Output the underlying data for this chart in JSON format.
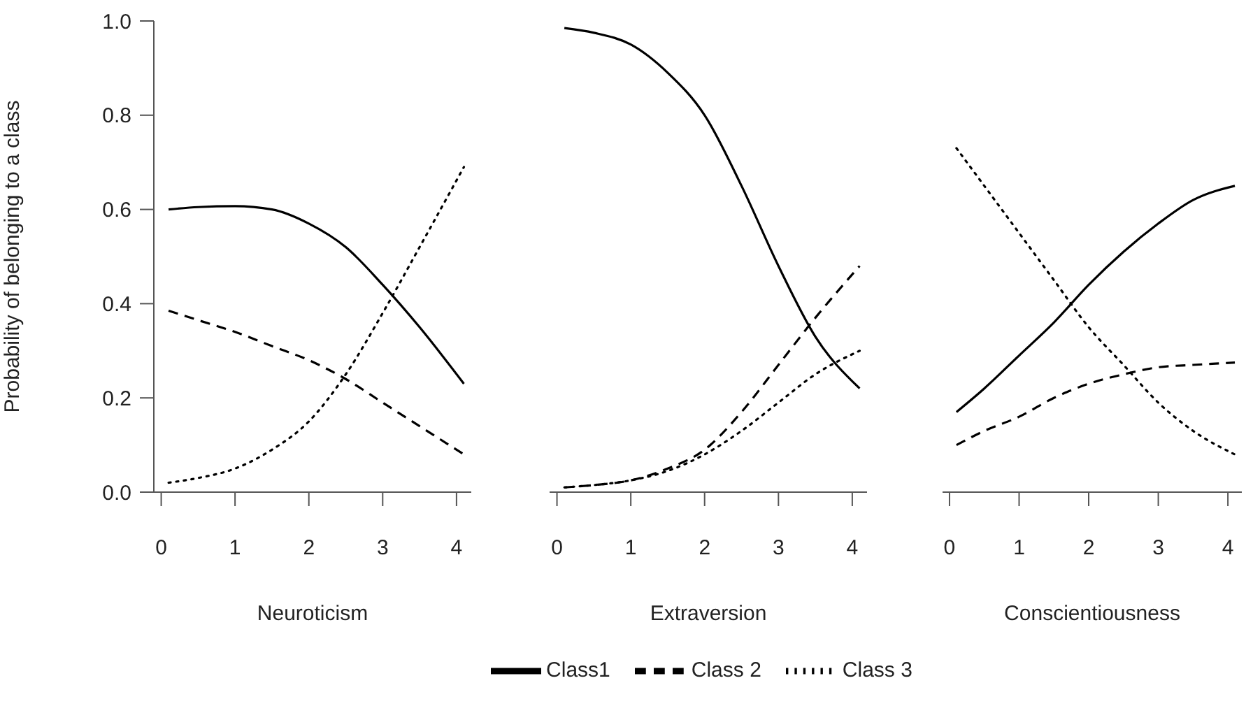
{
  "chart_data": [
    {
      "type": "line",
      "xlabel": "Neuroticism",
      "ylabel": "Probability of belonging to a class",
      "x": [
        0.1,
        0.5,
        1,
        1.5,
        2,
        2.5,
        3,
        3.5,
        4.1
      ],
      "xlim": [
        -0.1,
        4.2
      ],
      "xticks": [
        0,
        1,
        2,
        3,
        4
      ],
      "ylim": [
        0,
        1
      ],
      "yticks": [
        {
          "value": 0,
          "label": "0.0"
        },
        0.2,
        0.4,
        0.6,
        0.8,
        {
          "value": 1,
          "label": "1.0"
        }
      ],
      "grid": false,
      "marker": "none",
      "series": [
        {
          "color": "#000000",
          "line_style": "solid",
          "values": [
            0.6,
            0.605,
            0.607,
            0.6,
            0.57,
            0.52,
            0.44,
            0.35,
            0.23
          ]
        },
        {
          "color": "#000000",
          "line_style": "dashed",
          "values": [
            0.385,
            0.365,
            0.34,
            0.31,
            0.28,
            0.24,
            0.19,
            0.14,
            0.08
          ]
        },
        {
          "color": "#000000",
          "line_style": "dotted",
          "values": [
            0.02,
            0.03,
            0.05,
            0.09,
            0.15,
            0.25,
            0.38,
            0.52,
            0.69
          ]
        }
      ]
    },
    {
      "type": "line",
      "xlabel": "Extraversion",
      "x": [
        0.1,
        0.5,
        1,
        1.5,
        2,
        2.5,
        3,
        3.5,
        4.1
      ],
      "xlim": [
        -0.1,
        4.2
      ],
      "xticks": [
        0,
        1,
        2,
        3,
        4
      ],
      "ylim": [
        0,
        1
      ],
      "tick_labels": "x",
      "grid": false,
      "marker": "none",
      "legend": "bottom",
      "series": [
        {
          "name": "Class1",
          "color": "#000000",
          "line_style": "solid",
          "values": [
            0.985,
            0.975,
            0.95,
            0.89,
            0.8,
            0.65,
            0.48,
            0.33,
            0.22
          ]
        },
        {
          "name": "Class 2",
          "color": "#000000",
          "line_style": "dashed",
          "values": [
            0.01,
            0.015,
            0.025,
            0.05,
            0.09,
            0.17,
            0.27,
            0.37,
            0.48
          ]
        },
        {
          "name": "Class 3",
          "color": "#000000",
          "line_style": "dotted",
          "values": [
            0.01,
            0.015,
            0.025,
            0.045,
            0.08,
            0.13,
            0.19,
            0.25,
            0.3
          ]
        }
      ]
    },
    {
      "type": "line",
      "xlabel": "Conscientiousness",
      "x": [
        0.1,
        0.5,
        1,
        1.5,
        2,
        2.5,
        3,
        3.5,
        4.1
      ],
      "xlim": [
        -0.1,
        4.2
      ],
      "xticks": [
        0,
        1,
        2,
        3,
        4
      ],
      "ylim": [
        0,
        1
      ],
      "tick_labels": "x",
      "grid": false,
      "marker": "none",
      "series": [
        {
          "color": "#000000",
          "line_style": "solid",
          "values": [
            0.17,
            0.22,
            0.29,
            0.36,
            0.44,
            0.51,
            0.57,
            0.62,
            0.65
          ]
        },
        {
          "color": "#000000",
          "line_style": "dashed",
          "values": [
            0.1,
            0.13,
            0.16,
            0.2,
            0.23,
            0.25,
            0.265,
            0.27,
            0.275
          ]
        },
        {
          "color": "#000000",
          "line_style": "dotted",
          "values": [
            0.73,
            0.65,
            0.55,
            0.45,
            0.35,
            0.27,
            0.19,
            0.13,
            0.08
          ]
        }
      ]
    }
  ]
}
